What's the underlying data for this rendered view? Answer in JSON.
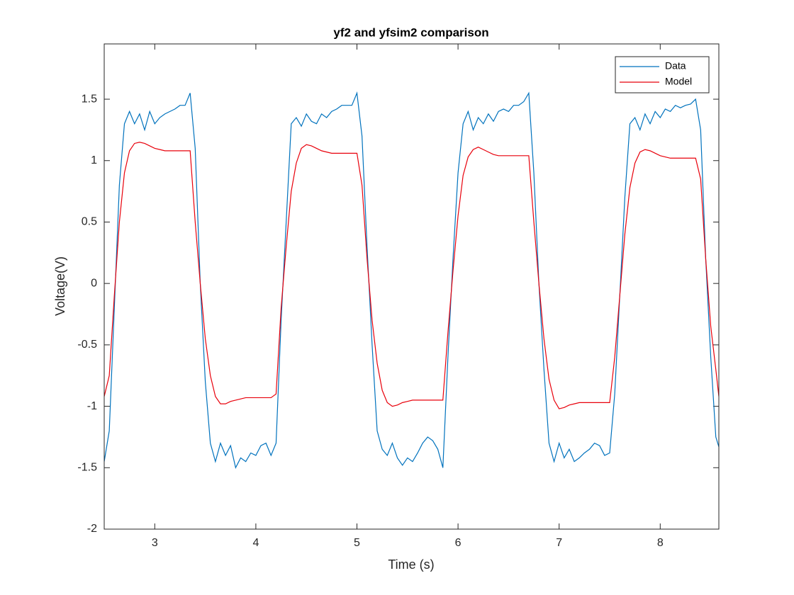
{
  "chart_data": {
    "type": "line",
    "title": "yf2 and yfsim2 comparison",
    "x_label": "Time (s)",
    "y_label": "Voltage(V)",
    "xlim": [
      2.5,
      8.58
    ],
    "ylim": [
      -2,
      1.95
    ],
    "xticks": [
      3,
      4,
      5,
      6,
      7,
      8
    ],
    "yticks": [
      -2,
      -1.5,
      -1,
      -0.5,
      0,
      0.5,
      1,
      1.5
    ],
    "legend": "northeast",
    "x": [
      2.5,
      2.55,
      2.6,
      2.65,
      2.7,
      2.75,
      2.8,
      2.85,
      2.9,
      2.95,
      3,
      3.05,
      3.1,
      3.15,
      3.2,
      3.25,
      3.3,
      3.35,
      3.4,
      3.45,
      3.5,
      3.55,
      3.6,
      3.65,
      3.7,
      3.75,
      3.8,
      3.85,
      3.9,
      3.95,
      4,
      4.05,
      4.1,
      4.15,
      4.2,
      4.25,
      4.3,
      4.35,
      4.4,
      4.45,
      4.5,
      4.55,
      4.6,
      4.65,
      4.7,
      4.75,
      4.8,
      4.85,
      4.9,
      4.95,
      5,
      5.05,
      5.1,
      5.15,
      5.2,
      5.25,
      5.3,
      5.35,
      5.4,
      5.45,
      5.5,
      5.55,
      5.6,
      5.65,
      5.7,
      5.75,
      5.8,
      5.85,
      5.9,
      5.95,
      6,
      6.05,
      6.1,
      6.15,
      6.2,
      6.25,
      6.3,
      6.35,
      6.4,
      6.45,
      6.5,
      6.55,
      6.6,
      6.65,
      6.7,
      6.75,
      6.8,
      6.85,
      6.9,
      6.95,
      7,
      7.05,
      7.1,
      7.15,
      7.2,
      7.25,
      7.3,
      7.35,
      7.4,
      7.45,
      7.5,
      7.55,
      7.6,
      7.65,
      7.7,
      7.75,
      7.8,
      7.85,
      7.9,
      7.95,
      8,
      8.05,
      8.1,
      8.15,
      8.2,
      8.25,
      8.3,
      8.35,
      8.4,
      8.45,
      8.5,
      8.55,
      8.58
    ],
    "series": [
      {
        "name": "Data",
        "color": "#0072bd",
        "values": [
          -1.45,
          -1.2,
          -0.2,
          0.8,
          1.3,
          1.4,
          1.3,
          1.38,
          1.25,
          1.4,
          1.3,
          1.35,
          1.38,
          1.4,
          1.42,
          1.45,
          1.45,
          1.55,
          1.1,
          0,
          -0.8,
          -1.3,
          -1.45,
          -1.3,
          -1.4,
          -1.32,
          -1.5,
          -1.42,
          -1.45,
          -1.38,
          -1.4,
          -1.32,
          -1.3,
          -1.4,
          -1.3,
          -0.3,
          0.5,
          1.3,
          1.35,
          1.28,
          1.38,
          1.32,
          1.3,
          1.38,
          1.35,
          1.4,
          1.42,
          1.45,
          1.45,
          1.45,
          1.55,
          1.2,
          0.3,
          -0.5,
          -1.2,
          -1.35,
          -1.4,
          -1.3,
          -1.42,
          -1.48,
          -1.42,
          -1.45,
          -1.38,
          -1.3,
          -1.25,
          -1.28,
          -1.35,
          -1.5,
          -0.6,
          0.2,
          0.9,
          1.3,
          1.4,
          1.25,
          1.35,
          1.3,
          1.38,
          1.32,
          1.4,
          1.42,
          1.4,
          1.45,
          1.45,
          1.48,
          1.55,
          0.9,
          0,
          -0.7,
          -1.3,
          -1.45,
          -1.3,
          -1.42,
          -1.35,
          -1.45,
          -1.42,
          -1.38,
          -1.35,
          -1.3,
          -1.32,
          -1.4,
          -1.38,
          -0.9,
          -0.1,
          0.7,
          1.3,
          1.35,
          1.25,
          1.38,
          1.3,
          1.4,
          1.35,
          1.42,
          1.4,
          1.45,
          1.43,
          1.45,
          1.46,
          1.5,
          1.25,
          0.2,
          -0.6,
          -1.25,
          -1.33
        ]
      },
      {
        "name": "Model",
        "color": "#e8000b",
        "values": [
          -0.92,
          -0.75,
          -0.1,
          0.5,
          0.9,
          1.08,
          1.14,
          1.15,
          1.14,
          1.12,
          1.1,
          1.09,
          1.08,
          1.08,
          1.08,
          1.08,
          1.08,
          1.08,
          0.5,
          0,
          -0.45,
          -0.75,
          -0.92,
          -0.98,
          -0.98,
          -0.96,
          -0.95,
          -0.94,
          -0.93,
          -0.93,
          -0.93,
          -0.93,
          -0.93,
          -0.93,
          -0.9,
          -0.2,
          0.3,
          0.75,
          0.98,
          1.1,
          1.13,
          1.12,
          1.1,
          1.08,
          1.07,
          1.06,
          1.06,
          1.06,
          1.06,
          1.06,
          1.06,
          0.8,
          0.2,
          -0.3,
          -0.65,
          -0.87,
          -0.97,
          -1,
          -0.99,
          -0.97,
          -0.96,
          -0.95,
          -0.95,
          -0.95,
          -0.95,
          -0.95,
          -0.95,
          -0.95,
          -0.4,
          0.1,
          0.55,
          0.88,
          1.03,
          1.09,
          1.11,
          1.09,
          1.07,
          1.05,
          1.04,
          1.04,
          1.04,
          1.04,
          1.04,
          1.04,
          1.04,
          0.5,
          0,
          -0.45,
          -0.78,
          -0.95,
          -1.02,
          -1.01,
          -0.99,
          -0.98,
          -0.97,
          -0.97,
          -0.97,
          -0.97,
          -0.97,
          -0.97,
          -0.97,
          -0.6,
          -0.1,
          0.4,
          0.78,
          0.98,
          1.07,
          1.09,
          1.08,
          1.06,
          1.04,
          1.03,
          1.02,
          1.02,
          1.02,
          1.02,
          1.02,
          1.02,
          0.85,
          0.2,
          -0.35,
          -0.7,
          -0.92
        ]
      }
    ]
  }
}
